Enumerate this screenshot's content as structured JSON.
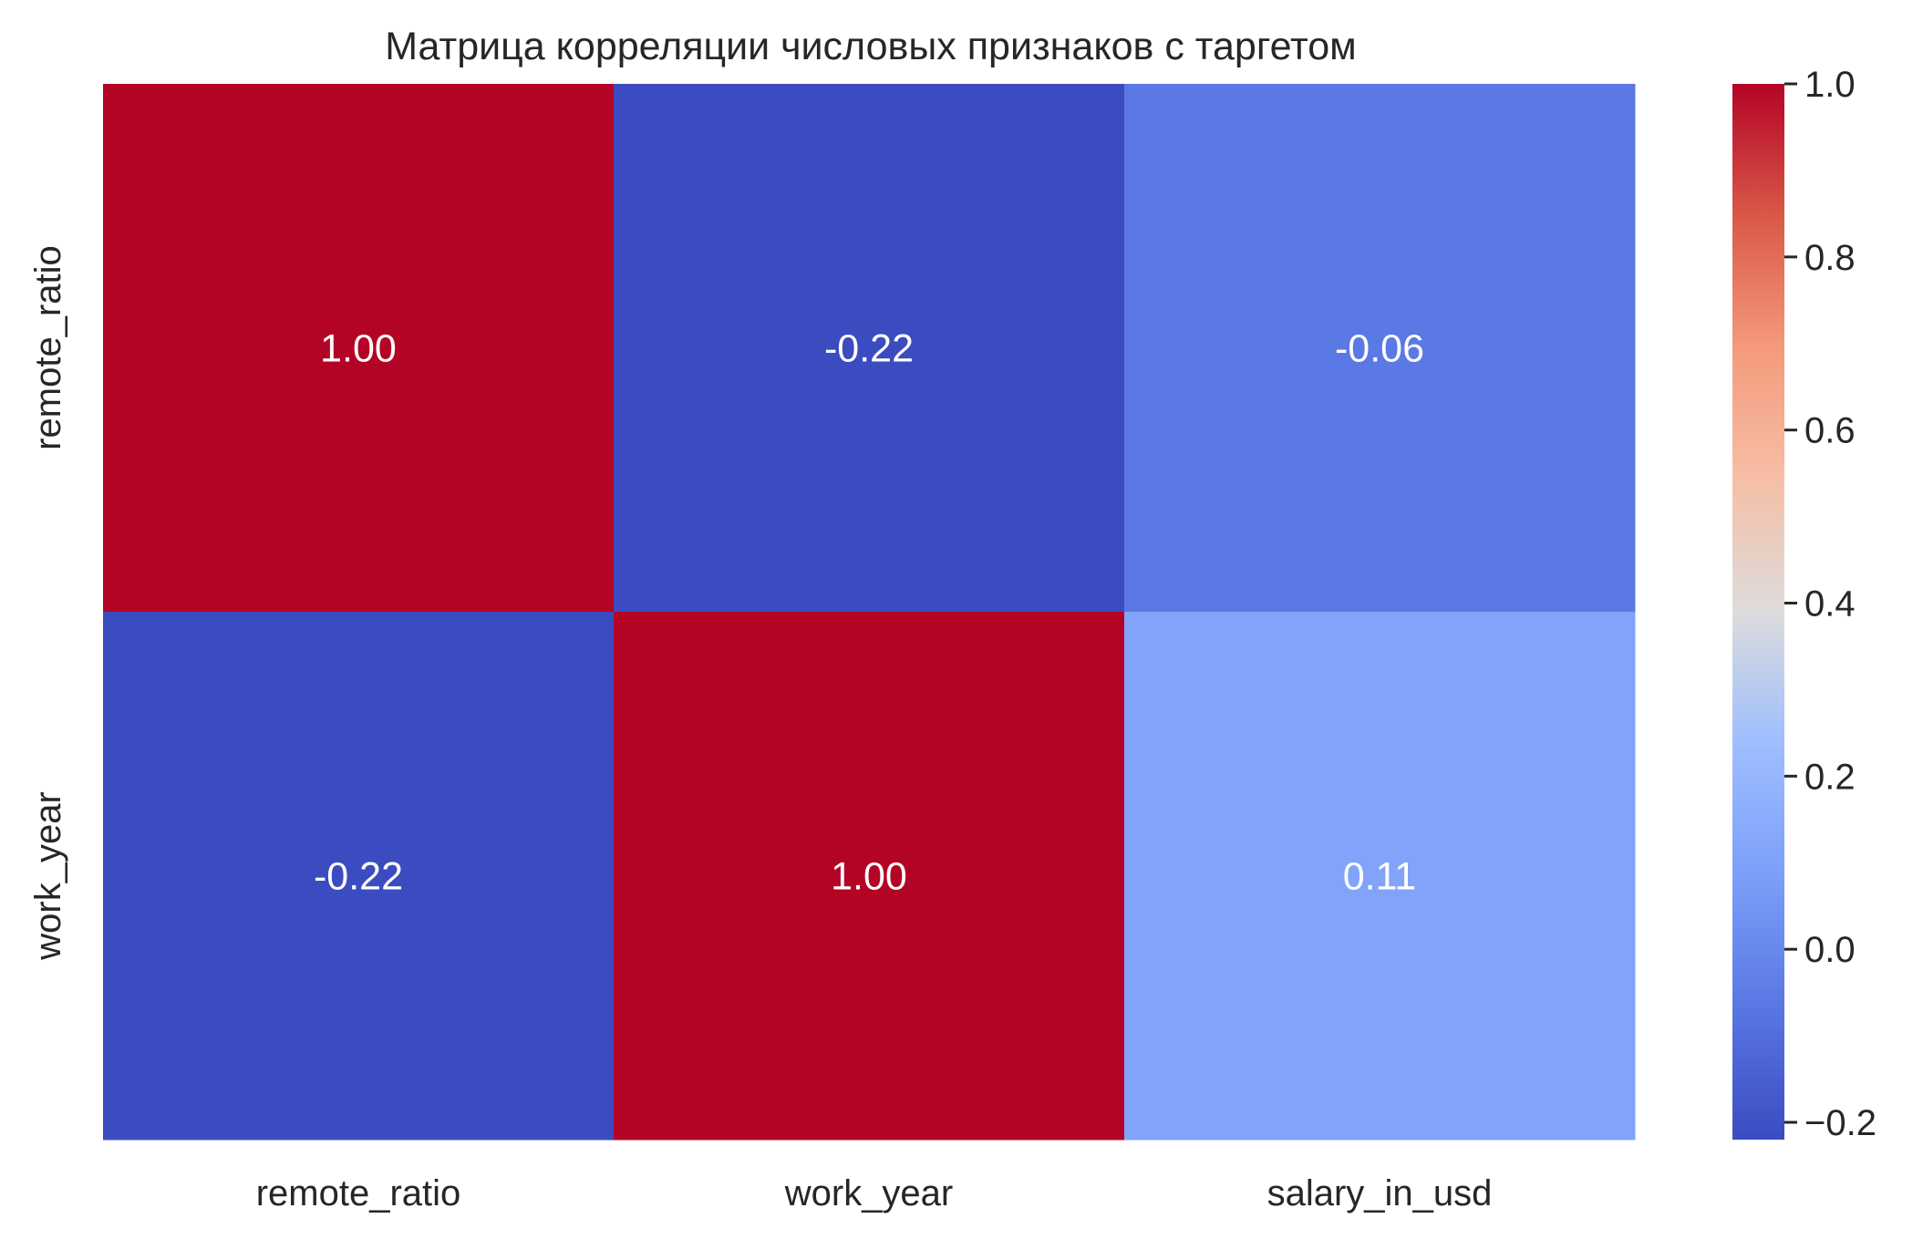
{
  "chart_data": {
    "type": "heatmap",
    "title": "Матрица корреляции числовых признаков с таргетом",
    "x_categories": [
      "remote_ratio",
      "work_year",
      "salary_in_usd"
    ],
    "y_categories": [
      "remote_ratio",
      "work_year"
    ],
    "values": [
      [
        1.0,
        -0.22,
        -0.06
      ],
      [
        -0.22,
        1.0,
        0.11
      ]
    ],
    "value_labels": [
      [
        "1.00",
        "-0.22",
        "-0.06"
      ],
      [
        "-0.22",
        "1.00",
        "0.11"
      ]
    ],
    "colormap": "coolwarm",
    "vmin": -0.22,
    "vmax": 1.0,
    "colorbar": {
      "ticks": [
        -0.2,
        0.0,
        0.2,
        0.4,
        0.6,
        0.8,
        1.0
      ],
      "tick_labels": [
        "−0.2",
        "0.0",
        "0.2",
        "0.4",
        "0.6",
        "0.8",
        "1.0"
      ],
      "placement": "right"
    },
    "annotation_colors": {
      "dark_bg": "#ffffff",
      "light_bg": "#262626"
    },
    "grid": false
  }
}
